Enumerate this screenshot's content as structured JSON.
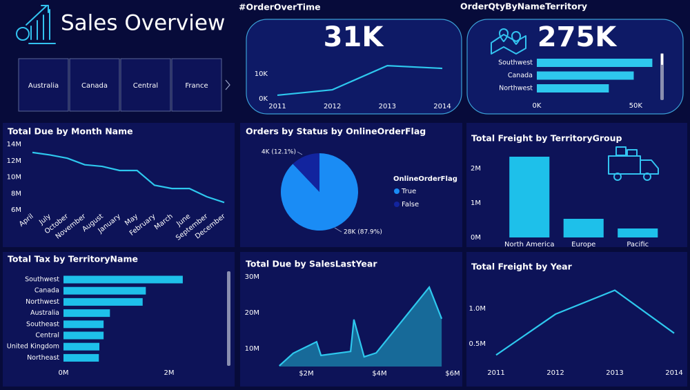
{
  "header": {
    "title": "Sales Overview"
  },
  "slicer": {
    "items": [
      "Australia",
      "Canada",
      "Central",
      "France"
    ]
  },
  "chart_data": [
    {
      "type": "line",
      "title": "#OrderOverTime",
      "kpi": "31K",
      "color": "#2ec8ee",
      "categories": [
        "2011",
        "2012",
        "2013",
        "2014"
      ],
      "values": [
        1400,
        3600,
        13300,
        12200
      ],
      "ylim": [
        0,
        15000
      ],
      "yticks": [
        {
          "value": 0,
          "label": "0K"
        },
        {
          "value": 10000,
          "label": "10K"
        }
      ]
    },
    {
      "type": "hbar",
      "title": "OrderQtyByNameTerritory",
      "kpi": "275K",
      "color": "#2ec8ee",
      "categories": [
        "Southwest",
        "Canada",
        "Northwest"
      ],
      "values": [
        58400,
        49000,
        36400
      ],
      "xlim": [
        0,
        60000
      ],
      "xticks": [
        {
          "value": 0,
          "label": "0K"
        },
        {
          "value": 50000,
          "label": "50K"
        }
      ]
    },
    {
      "type": "line",
      "title": "Total Due by Month Name",
      "color": "#2ec8ee",
      "categories": [
        "April",
        "July",
        "October",
        "November",
        "August",
        "January",
        "May",
        "February",
        "March",
        "June",
        "September",
        "December"
      ],
      "values": [
        13000000,
        12700000,
        12300000,
        11500000,
        11300000,
        10800000,
        10800000,
        9000000,
        8600000,
        8600000,
        7600000,
        6900000
      ],
      "ylim": [
        6000000,
        14000000
      ],
      "yticks": [
        {
          "value": 6000000,
          "label": "6M"
        },
        {
          "value": 8000000,
          "label": "8M"
        },
        {
          "value": 10000000,
          "label": "10M"
        },
        {
          "value": 12000000,
          "label": "12M"
        },
        {
          "value": 14000000,
          "label": "14M"
        }
      ]
    },
    {
      "type": "pie",
      "title": "Orders by Status by OnlineOrderFlag",
      "legend_title": "OnlineOrderFlag",
      "categories": [
        "True",
        "False"
      ],
      "values": [
        87.9,
        12.1
      ],
      "value_labels": [
        "28K (87.9%)",
        "4K (12.1%)"
      ],
      "colors": [
        "#1a8cf5",
        "#12249e"
      ]
    },
    {
      "type": "bar",
      "title": "Total Freight by TerritoryGroup",
      "color": "#1ec0ea",
      "categories": [
        "North America",
        "Europe",
        "Pacific"
      ],
      "values": [
        2340000,
        540000,
        260000
      ],
      "ylim": [
        0,
        2600000
      ],
      "yticks": [
        {
          "value": 0,
          "label": "0M"
        },
        {
          "value": 1000000,
          "label": "1M"
        },
        {
          "value": 2000000,
          "label": "2M"
        }
      ]
    },
    {
      "type": "hbar",
      "title": "Total Tax by TerritoryName",
      "color": "#1ec0ea",
      "categories": [
        "Southwest",
        "Canada",
        "Northwest",
        "Australia",
        "Southeast",
        "Central",
        "United Kingdom",
        "Northeast"
      ],
      "values": [
        2260000,
        1560000,
        1500000,
        880000,
        760000,
        760000,
        680000,
        670000
      ],
      "xlim": [
        0,
        3000000
      ],
      "xticks": [
        {
          "value": 0,
          "label": "0M"
        },
        {
          "value": 2000000,
          "label": "2M"
        }
      ]
    },
    {
      "type": "area",
      "title": "Total Due by SalesLastYear",
      "color": "#2ec8ee",
      "fill": "#176a99",
      "x": [
        1260000,
        1640000,
        2280000,
        2400000,
        3210000,
        3300000,
        3580000,
        3910000,
        5360000,
        5700000
      ],
      "values": [
        5200000,
        8700000,
        11900000,
        8100000,
        9200000,
        18100000,
        7700000,
        8800000,
        27100000,
        18300000
      ],
      "xlim": [
        1200000,
        6000000
      ],
      "xticks": [
        {
          "value": 2000000,
          "label": "$2M"
        },
        {
          "value": 4000000,
          "label": "$4M"
        },
        {
          "value": 6000000,
          "label": "$6M"
        }
      ],
      "ylim": [
        5000000,
        31000000
      ],
      "yticks": [
        {
          "value": 10000000,
          "label": "10M"
        },
        {
          "value": 20000000,
          "label": "20M"
        },
        {
          "value": 30000000,
          "label": "30M"
        }
      ]
    },
    {
      "type": "line",
      "title": "Total Freight by Year",
      "color": "#2ec8ee",
      "categories": [
        "2011",
        "2012",
        "2013",
        "2014"
      ],
      "values": [
        340000,
        920000,
        1260000,
        650000
      ],
      "ylim": [
        200000,
        1400000
      ],
      "yticks": [
        {
          "value": 500000,
          "label": "0.5M"
        },
        {
          "value": 1000000,
          "label": "1.0M"
        }
      ]
    }
  ]
}
